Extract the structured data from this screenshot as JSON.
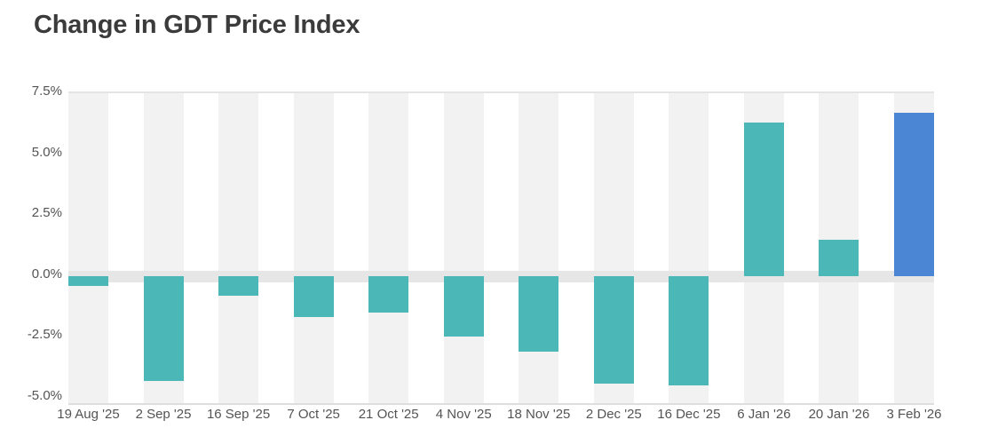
{
  "chart_data": {
    "type": "bar",
    "title": "Change in GDT Price Index",
    "categories": [
      "19 Aug '25",
      "2 Sep '25",
      "16 Sep '25",
      "7 Oct '25",
      "21 Oct '25",
      "4 Nov '25",
      "18 Nov '25",
      "2 Dec '25",
      "16 Dec '25",
      "6 Jan '26",
      "20 Jan '26",
      "3 Feb '26"
    ],
    "values": [
      -0.4,
      -4.3,
      -0.8,
      -1.7,
      -1.5,
      -2.5,
      -3.1,
      -4.4,
      -4.5,
      6.3,
      1.5,
      6.7
    ],
    "xlabel": "",
    "ylabel": "",
    "ylim": [
      -5.0,
      7.5
    ],
    "yticks": [
      {
        "value": 7.5,
        "label": "7.5%"
      },
      {
        "value": 5.0,
        "label": "5.0%"
      },
      {
        "value": 2.5,
        "label": "2.5%"
      },
      {
        "value": 0.0,
        "label": "0.0%"
      },
      {
        "value": -2.5,
        "label": "-2.5%"
      },
      {
        "value": -5.0,
        "label": "-5.0%"
      }
    ],
    "legend": "none",
    "grid": "zero-line band only, striped column backgrounds",
    "colors": {
      "bar": "#4bb7b7",
      "highlight_bar": "#4a86d3",
      "highlight_index": 11,
      "column_band": "#f2f2f2",
      "zero_band": "#e6e6e6",
      "axis_text": "#545454",
      "title_text": "#3b3b3b"
    }
  }
}
